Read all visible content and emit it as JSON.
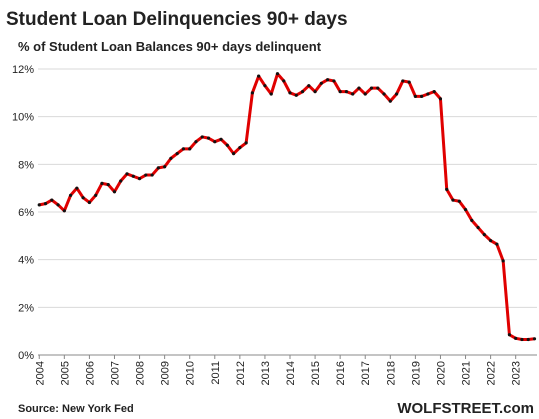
{
  "chart_data": {
    "type": "line",
    "title": "Student Loan Delinquencies 90+ days",
    "subtitle": "% of Student Loan Balances 90+ days delinquent",
    "source": "Source: New York Fed",
    "brand": "WOLFSTREET.com",
    "x": [
      2004,
      2004.25,
      2004.5,
      2004.75,
      2005,
      2005.25,
      2005.5,
      2005.75,
      2006,
      2006.25,
      2006.5,
      2006.75,
      2007,
      2007.25,
      2007.5,
      2007.75,
      2008,
      2008.25,
      2008.5,
      2008.75,
      2009,
      2009.25,
      2009.5,
      2009.75,
      2010,
      2010.25,
      2010.5,
      2010.75,
      2011,
      2011.25,
      2011.5,
      2011.75,
      2012,
      2012.25,
      2012.5,
      2012.75,
      2013,
      2013.25,
      2013.5,
      2013.75,
      2014,
      2014.25,
      2014.5,
      2014.75,
      2015,
      2015.25,
      2015.5,
      2015.75,
      2016,
      2016.25,
      2016.5,
      2016.75,
      2017,
      2017.25,
      2017.5,
      2017.75,
      2018,
      2018.25,
      2018.5,
      2018.75,
      2019,
      2019.25,
      2019.5,
      2019.75,
      2020,
      2020.25,
      2020.5,
      2020.75,
      2021,
      2021.25,
      2021.5,
      2021.75,
      2022,
      2022.25,
      2022.5,
      2022.75,
      2023,
      2023.25,
      2023.5,
      2023.75
    ],
    "series": [
      {
        "color": "#e00000",
        "marker_color": "#111111",
        "values": [
          6.3,
          6.35,
          6.5,
          6.3,
          6.05,
          6.7,
          7.0,
          6.6,
          6.4,
          6.7,
          7.2,
          7.15,
          6.85,
          7.3,
          7.6,
          7.5,
          7.4,
          7.55,
          7.55,
          7.85,
          7.9,
          8.25,
          8.45,
          8.65,
          8.65,
          8.95,
          9.15,
          9.1,
          8.95,
          9.05,
          8.8,
          8.45,
          8.7,
          8.9,
          11.0,
          11.7,
          11.3,
          10.95,
          11.8,
          11.5,
          11.0,
          10.9,
          11.05,
          11.3,
          11.05,
          11.4,
          11.55,
          11.5,
          11.05,
          11.05,
          10.95,
          11.2,
          10.95,
          11.2,
          11.2,
          10.95,
          10.65,
          10.95,
          11.5,
          11.45,
          10.85,
          10.85,
          10.95,
          11.05,
          10.75,
          6.95,
          6.5,
          6.45,
          6.1,
          5.65,
          5.35,
          5.05,
          4.8,
          4.65,
          3.95,
          0.85,
          0.7,
          0.65,
          0.65,
          0.68
        ]
      }
    ],
    "xlim": [
      2003.95,
      2023.85
    ],
    "xticks": [
      2004,
      2005,
      2006,
      2007,
      2008,
      2009,
      2010,
      2011,
      2012,
      2013,
      2014,
      2015,
      2016,
      2017,
      2018,
      2019,
      2020,
      2021,
      2022,
      2023
    ],
    "ylim": [
      0,
      12
    ],
    "yticks": [
      {
        "value": 0,
        "label": "0%"
      },
      {
        "value": 2,
        "label": "2%"
      },
      {
        "value": 4,
        "label": "4%"
      },
      {
        "value": 6,
        "label": "6%"
      },
      {
        "value": 8,
        "label": "8%"
      },
      {
        "value": 10,
        "label": "10%"
      },
      {
        "value": 12,
        "label": "12%"
      }
    ],
    "grid": true
  }
}
